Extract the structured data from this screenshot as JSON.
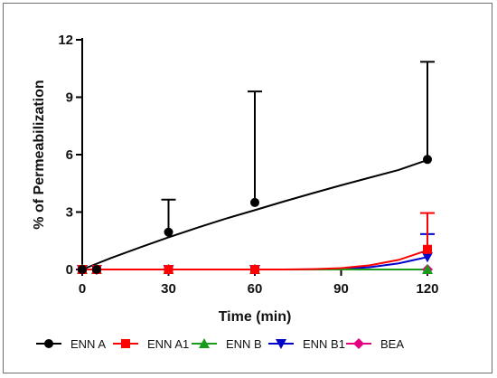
{
  "chart_data": {
    "type": "line",
    "title": "",
    "xlabel": "Time (min)",
    "ylabel": "% of Permeabilization",
    "xlim": [
      0,
      120
    ],
    "ylim": [
      0,
      12
    ],
    "xticks": [
      0,
      30,
      60,
      90,
      120
    ],
    "yticks": [
      0,
      3,
      6,
      9,
      12
    ],
    "grid": false,
    "legend": "bottom",
    "x": [
      0,
      5,
      30,
      60,
      120
    ],
    "series": [
      {
        "name": "ENN A",
        "color": "#000000",
        "marker": "circle",
        "values": [
          0,
          0,
          1.95,
          3.5,
          5.75
        ],
        "error_upper": [
          0,
          0,
          3.65,
          9.3,
          10.85
        ],
        "fit": [
          [
            0,
            0
          ],
          [
            10,
            0.6
          ],
          [
            20,
            1.15
          ],
          [
            30,
            1.68
          ],
          [
            40,
            2.18
          ],
          [
            50,
            2.66
          ],
          [
            60,
            3.1
          ],
          [
            70,
            3.55
          ],
          [
            80,
            3.98
          ],
          [
            90,
            4.4
          ],
          [
            100,
            4.8
          ],
          [
            110,
            5.2
          ],
          [
            120,
            5.72
          ]
        ]
      },
      {
        "name": "ENN A1",
        "color": "#ff0000",
        "marker": "square",
        "values": [
          0,
          0,
          0,
          0,
          1.05
        ],
        "error_upper": [
          0,
          0,
          0,
          0,
          2.95
        ],
        "fit": [
          [
            0,
            0
          ],
          [
            70,
            0
          ],
          [
            80,
            0.02
          ],
          [
            90,
            0.07
          ],
          [
            100,
            0.22
          ],
          [
            110,
            0.5
          ],
          [
            120,
            1.0
          ]
        ]
      },
      {
        "name": "ENN B",
        "color": "#1a9a1a",
        "marker": "triangle-up",
        "values": [
          0,
          0,
          0,
          0,
          0
        ],
        "error_upper": [
          0,
          0,
          0,
          0,
          0
        ],
        "fit": [
          [
            0,
            0
          ],
          [
            120,
            0
          ]
        ]
      },
      {
        "name": "ENN B1",
        "color": "#0000cc",
        "marker": "triangle-down",
        "values": [
          0,
          0,
          0,
          0,
          0.65
        ],
        "error_upper": [
          0,
          0,
          0,
          0,
          1.85
        ],
        "fit": [
          [
            0,
            0
          ],
          [
            75,
            0
          ],
          [
            90,
            0.03
          ],
          [
            100,
            0.12
          ],
          [
            110,
            0.32
          ],
          [
            120,
            0.65
          ]
        ]
      },
      {
        "name": "BEA",
        "color": "#e4007f",
        "marker": "diamond",
        "values": [
          0,
          0,
          0,
          0,
          0
        ],
        "error_upper": [
          0,
          0,
          0,
          0,
          0
        ],
        "fit": [
          [
            0,
            0
          ],
          [
            120,
            0
          ]
        ]
      }
    ]
  }
}
